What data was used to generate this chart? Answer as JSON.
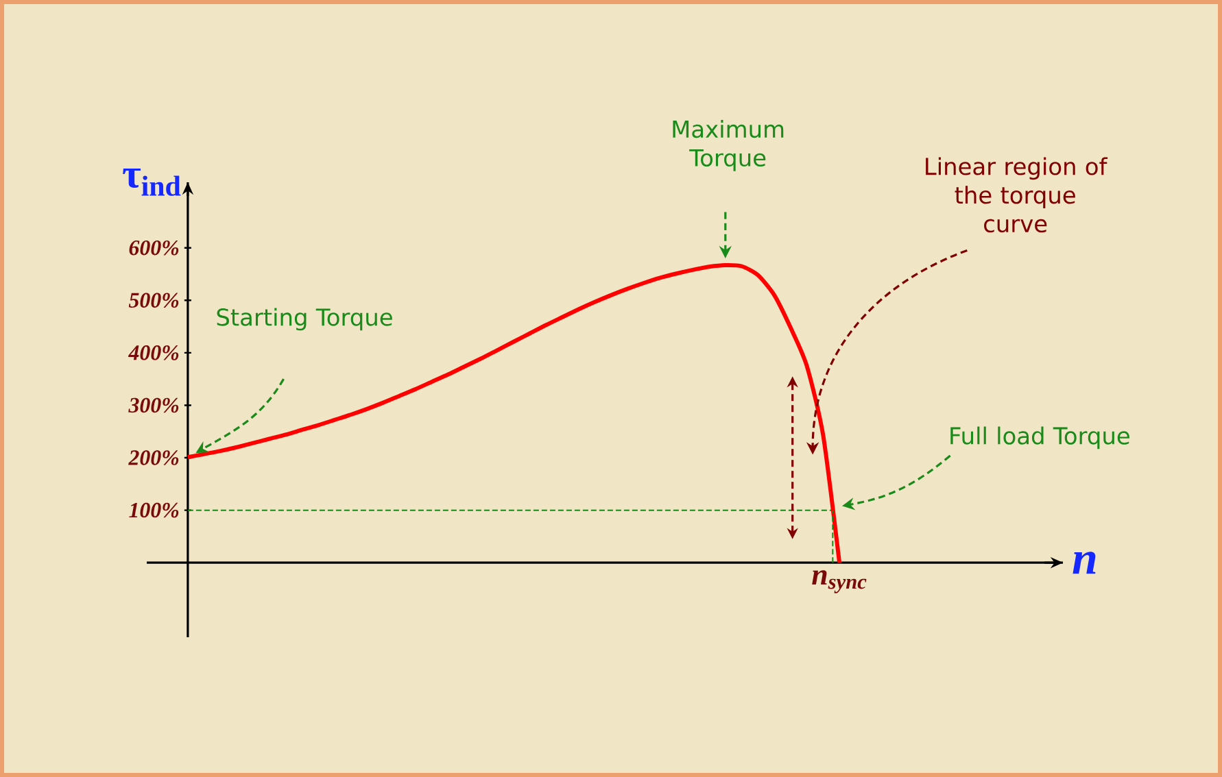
{
  "chart_data": {
    "type": "line",
    "ylabel": "τ$_{ind}$",
    "categories": [
      null,
      null,
      null,
      null,
      null,
      null,
      null,
      null,
      null,
      null,
      null,
      null,
      null,
      null,
      null,
      null,
      null,
      null,
      null,
      null,
      null,
      null,
      null,
      null,
      null,
      null,
      null,
      null,
      null,
      null,
      null,
      null,
      null,
      null,
      null,
      null,
      null,
      null,
      null,
      null,
      null
    ],
    "series": [
      {
        "color": "#ff0000",
        "values": [
          201,
          207,
          213,
          220,
          228,
          236,
          244,
          253,
          262,
          272,
          282,
          293,
          305,
          318,
          331,
          345,
          359,
          374,
          389,
          405,
          421,
          437,
          453,
          468,
          483,
          497,
          510,
          522,
          533,
          543,
          551,
          558,
          564,
          567,
          565,
          548,
          510,
          448,
          375,
          243,
          0
        ]
      }
    ],
    "ylim": [
      -142,
      725
    ],
    "yticks": [
      {
        "value": 100,
        "label": "100%"
      },
      {
        "value": 200,
        "label": "200%"
      },
      {
        "value": 300,
        "label": "300%"
      },
      {
        "value": 400,
        "label": "400%"
      },
      {
        "value": 500,
        "label": "500%"
      },
      {
        "value": 600,
        "label": "600%"
      }
    ],
    "ref_lines": [
      {
        "axis": "y",
        "value": 100,
        "color": "#1a8a1a",
        "line_style": "dashed"
      }
    ],
    "annotations": [
      "Starting Torque",
      "Maximum Torque",
      "Linear  region of the torque curve",
      "Full load Torque",
      "n$_{sync}$",
      "n"
    ]
  }
}
